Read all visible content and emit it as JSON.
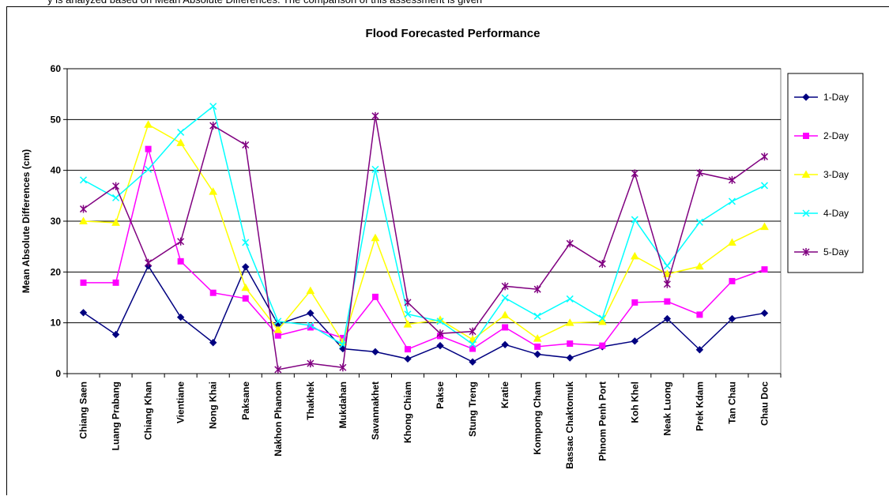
{
  "caption_top": "y is analyzed based on Mean Absolute Differences. The comparison of this assessment is given",
  "chart_data": {
    "type": "line",
    "title": "Flood Forecasted Performance",
    "xlabel": "",
    "ylabel": "Mean Absolute Differences (cm)",
    "ylim": [
      0,
      60
    ],
    "yticks": [
      0,
      10,
      20,
      30,
      40,
      50,
      60
    ],
    "grid": true,
    "legend_position": "right",
    "categories": [
      "Chiang Saen",
      "Luang Prabang",
      "Chiang Khan",
      "Vientiane",
      "Nong Khai",
      "Paksane",
      "Nakhon Phanom",
      "Thakhek",
      "Mukdahan",
      "Savannakhet",
      "Khong Chiam",
      "Pakse",
      "Stung Treng",
      "Kratie",
      "Kompong Cham",
      "Bassac Chaktomuk",
      "Phnom Penh Port",
      "Koh Khel",
      "Neak Luong",
      "Prek Kdam",
      "Tan Chau",
      "Chau Doc"
    ],
    "series": [
      {
        "name": "1-Day",
        "color": "#000080",
        "marker": "diamond",
        "values": [
          12.0,
          7.7,
          21.2,
          11.1,
          6.1,
          21.0,
          9.7,
          11.9,
          4.9,
          4.3,
          2.9,
          5.5,
          2.3,
          5.7,
          3.8,
          3.1,
          5.3,
          6.4,
          10.8,
          4.7,
          10.8,
          11.9
        ]
      },
      {
        "name": "2-Day",
        "color": "#FF00FF",
        "marker": "square",
        "values": [
          17.9,
          17.9,
          44.2,
          22.1,
          15.9,
          14.8,
          7.5,
          9.1,
          7.0,
          15.1,
          4.8,
          7.4,
          4.9,
          9.1,
          5.3,
          5.9,
          5.5,
          14.0,
          14.2,
          11.6,
          18.2,
          20.5
        ]
      },
      {
        "name": "3-Day",
        "color": "#FFFF00",
        "marker": "triangle",
        "values": [
          30.0,
          29.7,
          49.0,
          45.4,
          35.8,
          16.9,
          8.6,
          16.3,
          6.2,
          26.7,
          9.7,
          10.6,
          6.7,
          11.5,
          6.9,
          10.0,
          10.2,
          23.1,
          19.6,
          21.1,
          25.8,
          28.9
        ]
      },
      {
        "name": "4-Day",
        "color": "#00FFFF",
        "marker": "x",
        "values": [
          38.1,
          34.6,
          40.2,
          47.5,
          52.6,
          25.8,
          10.3,
          9.5,
          5.7,
          40.2,
          11.7,
          10.3,
          5.8,
          14.9,
          11.3,
          14.7,
          10.9,
          30.3,
          21.2,
          29.8,
          33.9,
          37.0
        ]
      },
      {
        "name": "5-Day",
        "color": "#800080",
        "marker": "star",
        "values": [
          32.4,
          36.9,
          21.8,
          26.0,
          48.8,
          45.0,
          0.8,
          2.0,
          1.2,
          50.7,
          14.0,
          7.9,
          8.3,
          17.2,
          16.6,
          25.6,
          21.6,
          39.4,
          17.6,
          39.5,
          38.1,
          42.7
        ]
      }
    ]
  }
}
